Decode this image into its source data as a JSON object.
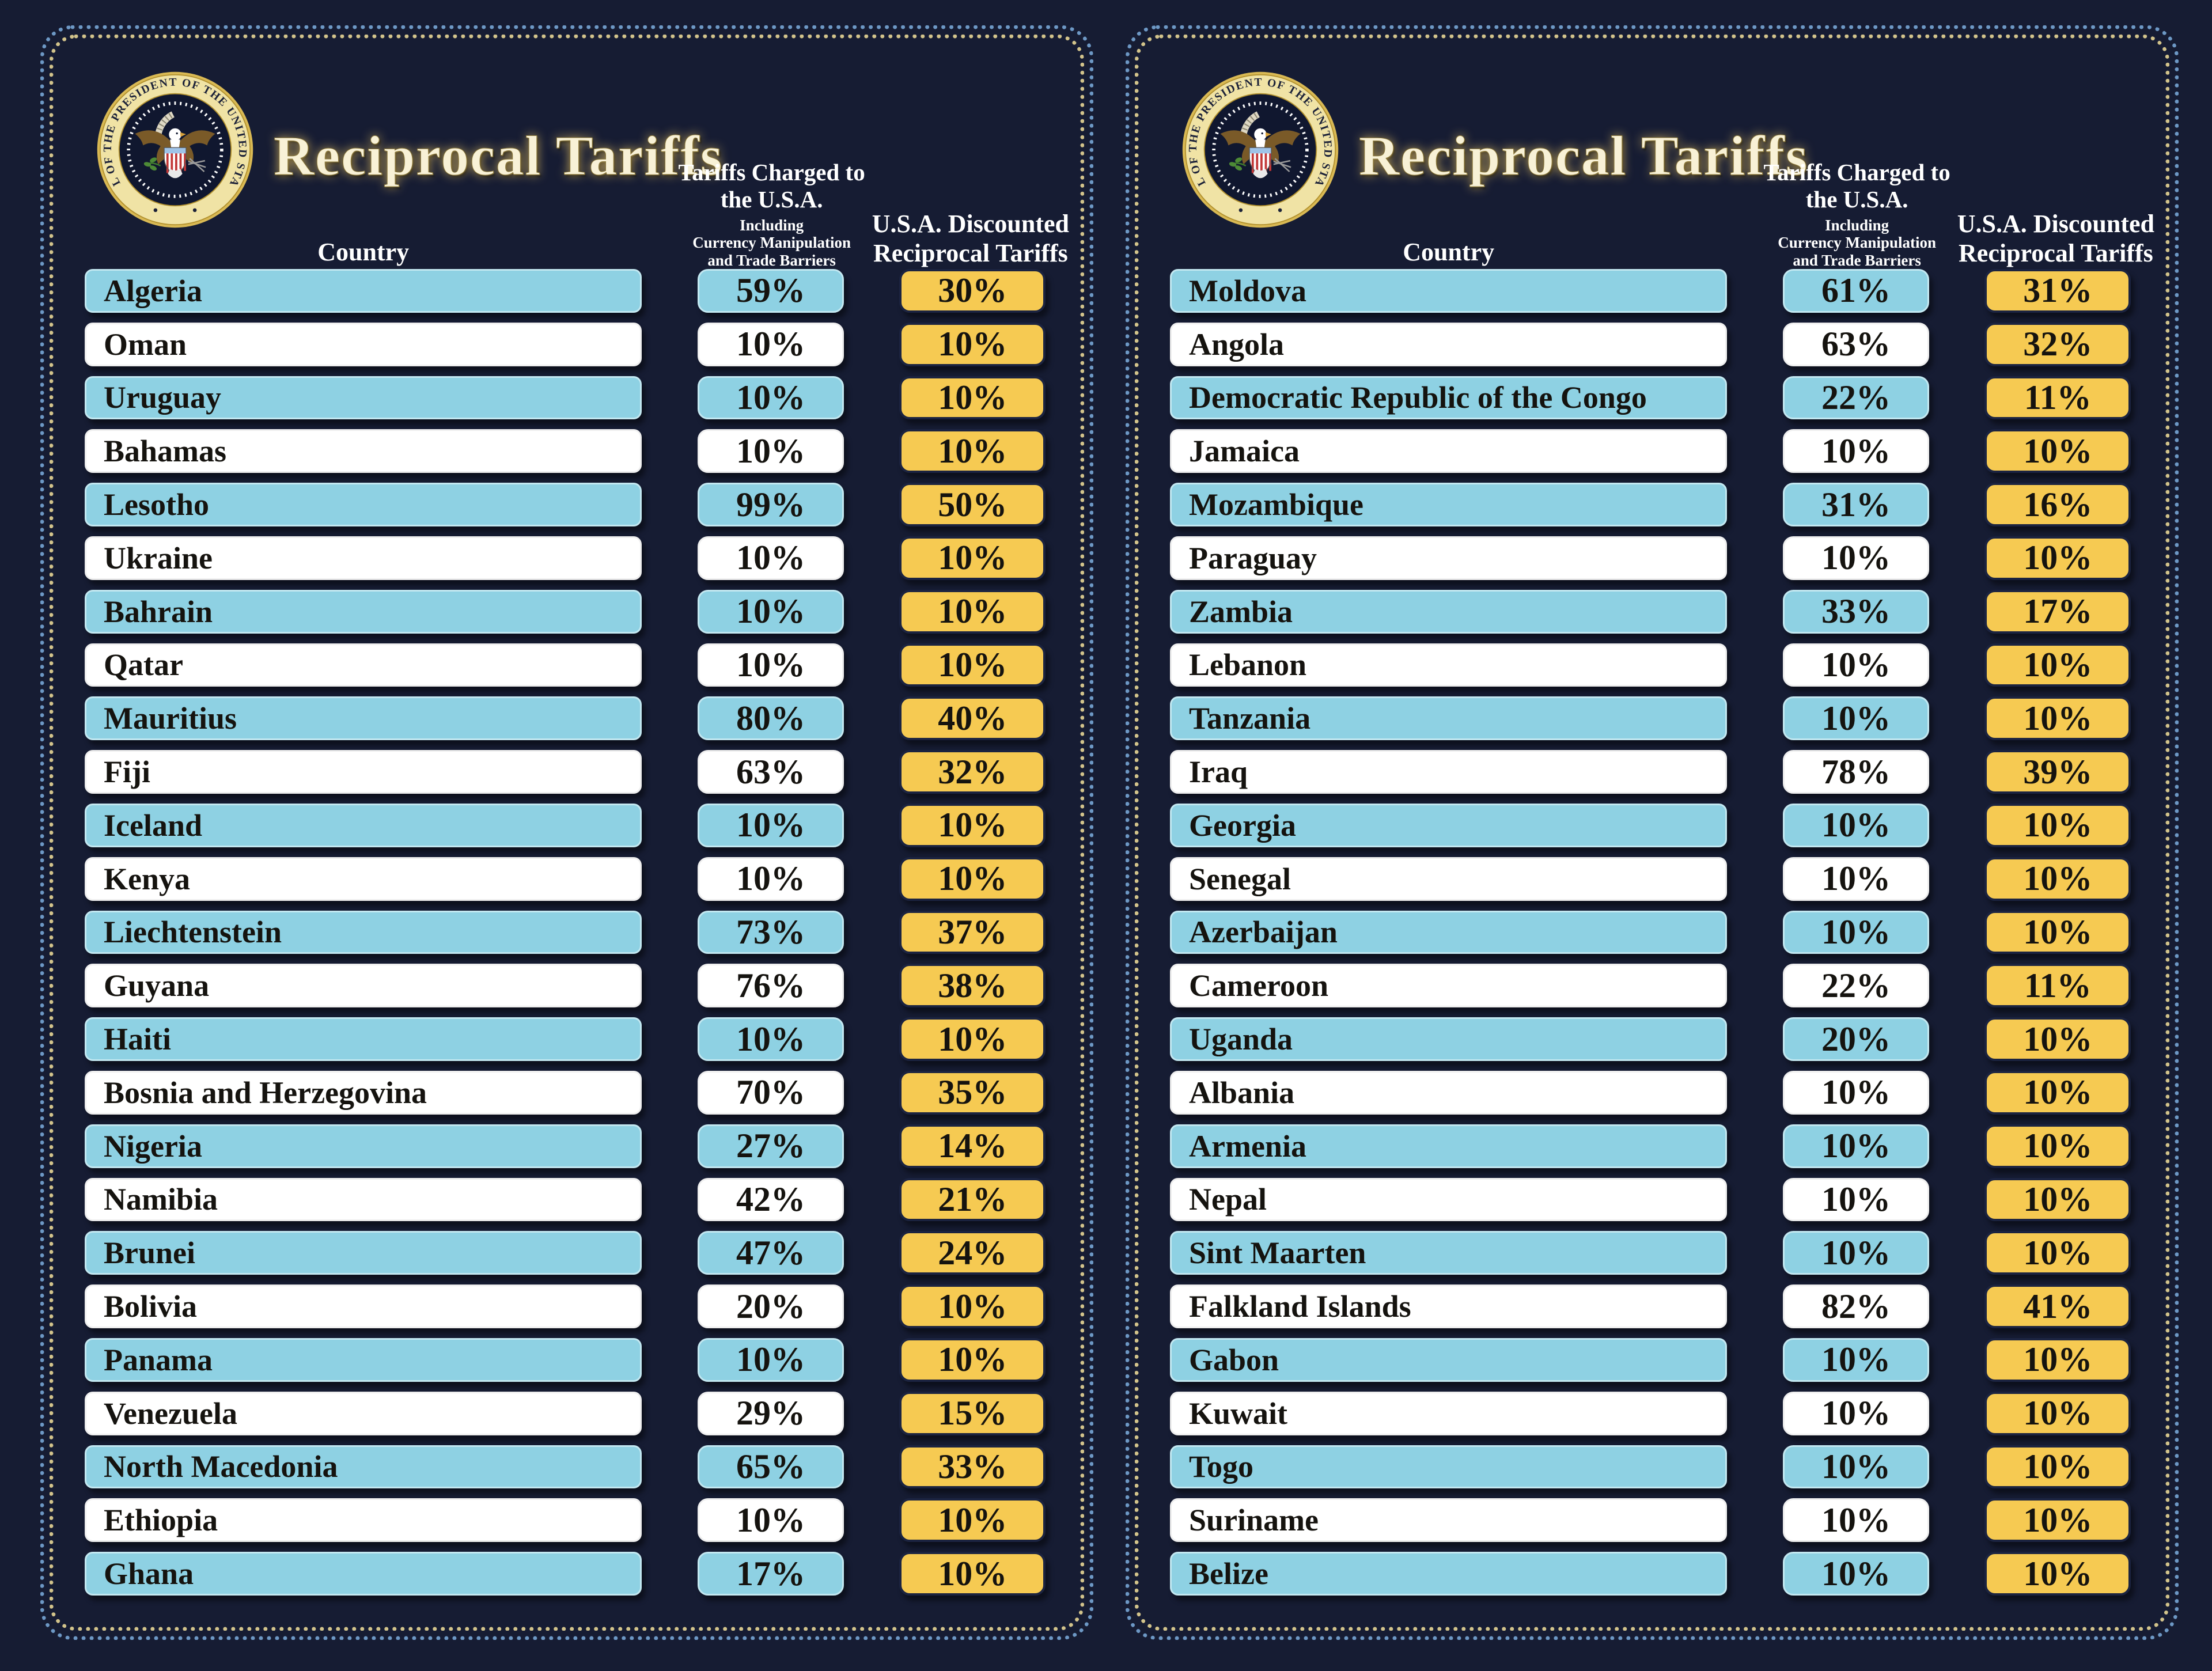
{
  "panel": {
    "title": "Reciprocal Tariffs",
    "seal_text": "SEAL OF THE PRESIDENT OF THE UNITED STATES",
    "headers": {
      "country": "Country",
      "charged_main": "Tariffs Charged to the U.S.A.",
      "charged_sub": [
        "Including",
        "Currency Manipulation",
        "and Trade Barriers"
      ],
      "discounted": "U.S.A. Discounted Reciprocal Tariffs"
    },
    "colors": {
      "background": "#161c33",
      "row_blue": "#8ed1e3",
      "row_white": "#ffffff",
      "pill_gold": "#f6ca52",
      "border_gold_dots": "#d2c38b",
      "border_blue_dots": "#6d98c5",
      "text_dark": "#15130f",
      "header_text": "#ffffff"
    }
  },
  "chart_data": {
    "type": "table",
    "title": "Reciprocal Tariffs",
    "unit": "%",
    "columns": [
      "Country",
      "Tariffs Charged to the U.S.A. Including Currency Manipulation and Trade Barriers",
      "U.S.A. Discounted Reciprocal Tariffs"
    ],
    "panels": [
      {
        "rows": [
          [
            "Algeria",
            59,
            30
          ],
          [
            "Oman",
            10,
            10
          ],
          [
            "Uruguay",
            10,
            10
          ],
          [
            "Bahamas",
            10,
            10
          ],
          [
            "Lesotho",
            99,
            50
          ],
          [
            "Ukraine",
            10,
            10
          ],
          [
            "Bahrain",
            10,
            10
          ],
          [
            "Qatar",
            10,
            10
          ],
          [
            "Mauritius",
            80,
            40
          ],
          [
            "Fiji",
            63,
            32
          ],
          [
            "Iceland",
            10,
            10
          ],
          [
            "Kenya",
            10,
            10
          ],
          [
            "Liechtenstein",
            73,
            37
          ],
          [
            "Guyana",
            76,
            38
          ],
          [
            "Haiti",
            10,
            10
          ],
          [
            "Bosnia and Herzegovina",
            70,
            35
          ],
          [
            "Nigeria",
            27,
            14
          ],
          [
            "Namibia",
            42,
            21
          ],
          [
            "Brunei",
            47,
            24
          ],
          [
            "Bolivia",
            20,
            10
          ],
          [
            "Panama",
            10,
            10
          ],
          [
            "Venezuela",
            29,
            15
          ],
          [
            "North Macedonia",
            65,
            33
          ],
          [
            "Ethiopia",
            10,
            10
          ],
          [
            "Ghana",
            17,
            10
          ]
        ]
      },
      {
        "rows": [
          [
            "Moldova",
            61,
            31
          ],
          [
            "Angola",
            63,
            32
          ],
          [
            "Democratic Republic of the Congo",
            22,
            11
          ],
          [
            "Jamaica",
            10,
            10
          ],
          [
            "Mozambique",
            31,
            16
          ],
          [
            "Paraguay",
            10,
            10
          ],
          [
            "Zambia",
            33,
            17
          ],
          [
            "Lebanon",
            10,
            10
          ],
          [
            "Tanzania",
            10,
            10
          ],
          [
            "Iraq",
            78,
            39
          ],
          [
            "Georgia",
            10,
            10
          ],
          [
            "Senegal",
            10,
            10
          ],
          [
            "Azerbaijan",
            10,
            10
          ],
          [
            "Cameroon",
            22,
            11
          ],
          [
            "Uganda",
            20,
            10
          ],
          [
            "Albania",
            10,
            10
          ],
          [
            "Armenia",
            10,
            10
          ],
          [
            "Nepal",
            10,
            10
          ],
          [
            "Sint Maarten",
            10,
            10
          ],
          [
            "Falkland Islands",
            82,
            41
          ],
          [
            "Gabon",
            10,
            10
          ],
          [
            "Kuwait",
            10,
            10
          ],
          [
            "Togo",
            10,
            10
          ],
          [
            "Suriname",
            10,
            10
          ],
          [
            "Belize",
            10,
            10
          ]
        ]
      }
    ]
  }
}
